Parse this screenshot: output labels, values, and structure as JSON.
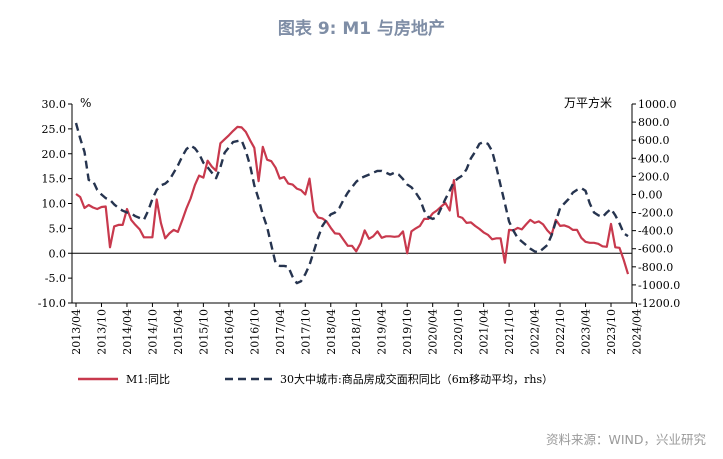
{
  "title": "图表 9:  M1 与房地产",
  "source": "资料来源：WIND，兴业研究",
  "chart_data": {
    "type": "line",
    "left_unit": "%",
    "right_unit": "万平方米",
    "left_axis": {
      "min": -10,
      "max": 30,
      "step": 5,
      "ticks": [
        "-10.0",
        "-5.0",
        "0.0",
        "5.0",
        "10.0",
        "15.0",
        "20.0",
        "25.0",
        "30.0"
      ]
    },
    "right_axis": {
      "min": -1200,
      "max": 1000,
      "step": 200,
      "ticks": [
        "-1200.0",
        "-1000.0",
        "-800.0",
        "-600.0",
        "-400.0",
        "-200.0",
        "0.00",
        "200.0",
        "400.0",
        "600.0",
        "800.0",
        "1000.0"
      ]
    },
    "x_start": "2013-04",
    "x_tick_labels": [
      "2013/04",
      "2013/10",
      "2014/04",
      "2014/10",
      "2015/04",
      "2015/10",
      "2016/04",
      "2016/10",
      "2017/04",
      "2017/10",
      "2018/04",
      "2018/10",
      "2019/04",
      "2019/10",
      "2020/04",
      "2020/10",
      "2021/04",
      "2021/10",
      "2022/04",
      "2022/10",
      "2023/04",
      "2023/10",
      "2024/04"
    ],
    "grid": false,
    "legend_position": "bottom",
    "series": [
      {
        "name": "M1:同比",
        "axis": "left",
        "color": "#c8394d",
        "style": "solid",
        "values": [
          11.9,
          11.3,
          9.1,
          9.7,
          9.2,
          8.9,
          9.3,
          9.4,
          1.2,
          5.4,
          5.7,
          5.7,
          8.9,
          6.7,
          5.7,
          4.8,
          3.2,
          3.2,
          3.2,
          10.8,
          6.1,
          3.0,
          4.0,
          4.7,
          4.3,
          6.6,
          9.0,
          11.0,
          13.7,
          15.6,
          15.2,
          18.6,
          17.4,
          16.6,
          22.1,
          22.9,
          23.7,
          24.6,
          25.4,
          25.3,
          24.4,
          22.7,
          21.2,
          14.5,
          21.4,
          18.8,
          18.5,
          17.2,
          15.0,
          15.3,
          14.0,
          13.8,
          13.0,
          12.7,
          11.8,
          15.0,
          8.5,
          7.2,
          7.0,
          6.4,
          5.1,
          4.0,
          3.9,
          2.7,
          1.5,
          1.5,
          0.4,
          2.0,
          4.6,
          2.9,
          3.4,
          4.4,
          3.1,
          3.4,
          3.4,
          3.3,
          3.4,
          4.4,
          0.0,
          4.4,
          5.0,
          5.5,
          6.9,
          6.9,
          8.0,
          8.6,
          9.4,
          10.1,
          8.6,
          14.7,
          7.4,
          7.1,
          6.1,
          6.2,
          5.5,
          4.9,
          4.2,
          3.7,
          2.8,
          3.0,
          3.0,
          -1.9,
          4.7,
          4.6,
          5.1,
          4.8,
          5.8,
          6.7,
          6.1,
          6.4,
          5.8,
          4.6,
          3.7,
          6.7,
          5.5,
          5.6,
          5.3,
          4.7,
          4.7,
          3.1,
          2.3,
          2.1,
          2.1,
          1.9,
          1.4,
          1.3,
          5.9,
          1.2,
          1.1,
          -1.4,
          -4.2
        ]
      },
      {
        "name": "30大中城市:商品房成交面积同比（6m移动平均，rhs）",
        "axis": "right",
        "color": "#26344f",
        "style": "dashed",
        "values": [
          790,
          620,
          470,
          160,
          150,
          50,
          0,
          -40,
          -60,
          -110,
          -150,
          -180,
          -200,
          -210,
          -240,
          -260,
          -280,
          -180,
          -50,
          50,
          100,
          120,
          160,
          240,
          320,
          420,
          500,
          540,
          510,
          450,
          350,
          300,
          240,
          180,
          300,
          460,
          520,
          580,
          590,
          600,
          480,
          320,
          100,
          -50,
          -220,
          -360,
          -560,
          -760,
          -790,
          -790,
          -800,
          -910,
          -980,
          -960,
          -880,
          -780,
          -630,
          -480,
          -350,
          -280,
          -220,
          -200,
          -150,
          -60,
          20,
          80,
          140,
          180,
          200,
          220,
          240,
          260,
          260,
          240,
          220,
          240,
          220,
          170,
          110,
          80,
          20,
          -50,
          -180,
          -250,
          -270,
          -250,
          -150,
          -50,
          40,
          140,
          180,
          210,
          280,
          400,
          470,
          560,
          580,
          560,
          480,
          300,
          100,
          -100,
          -300,
          -400,
          -480,
          -520,
          -560,
          -600,
          -630,
          -640,
          -600,
          -560,
          -450,
          -300,
          -150,
          -100,
          -50,
          20,
          50,
          70,
          40,
          -100,
          -200,
          -230,
          -250,
          -200,
          -160,
          -230,
          -320,
          -430,
          -460
        ]
      }
    ]
  }
}
